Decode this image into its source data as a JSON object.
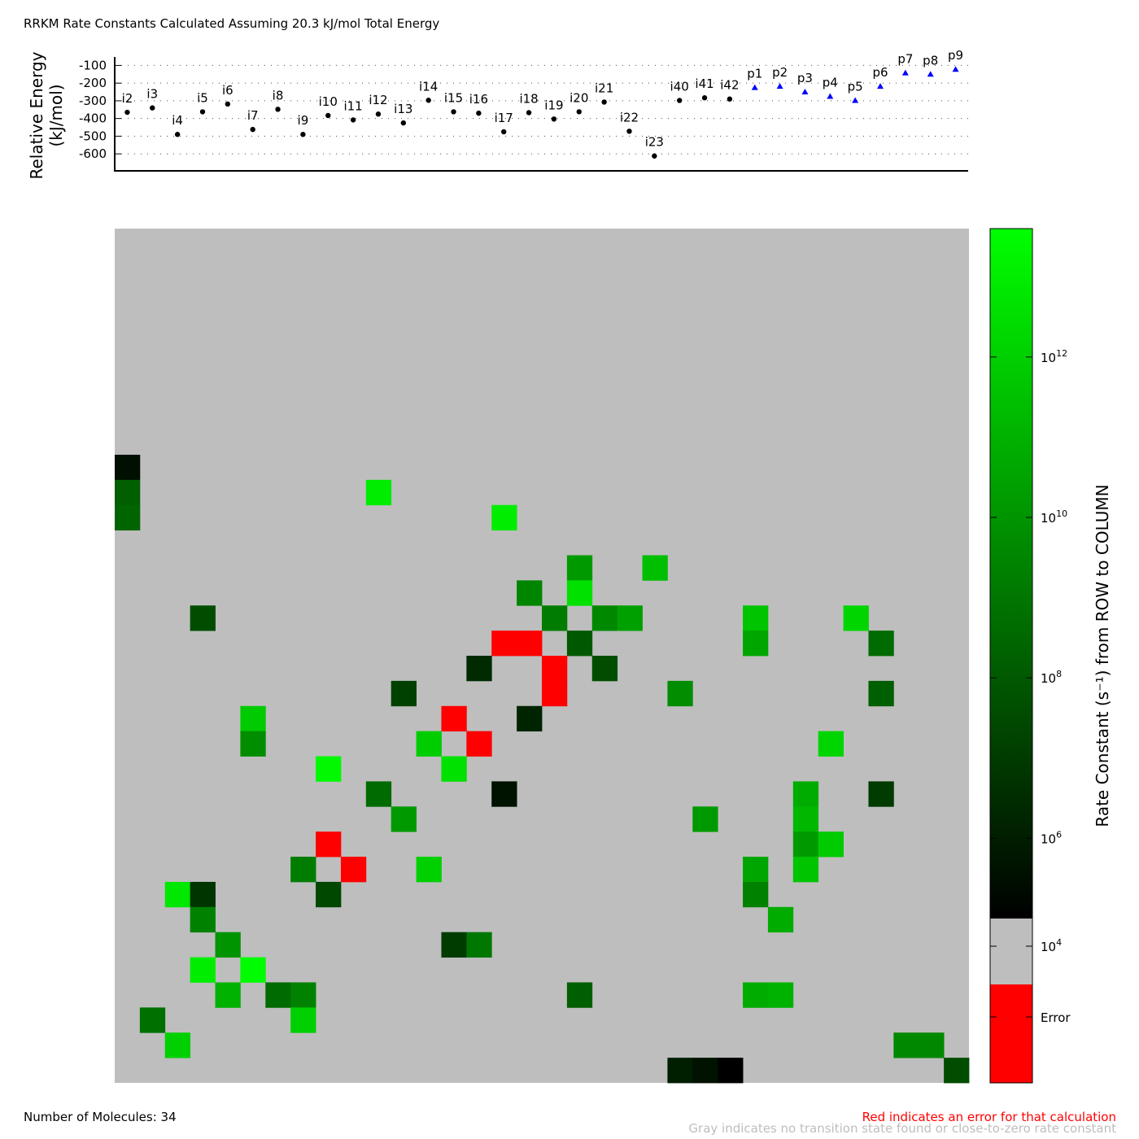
{
  "title": "RRKM Rate Constants Calculated Assuming 20.3 kJ/mol Total Energy",
  "footer": {
    "molecules": "Number of Molecules: 34",
    "red_note": "Red indicates an error for that calculation",
    "gray_note": "Gray indicates no transition state found or close-to-zero rate constant"
  },
  "colors": {
    "gray": "#bebebe",
    "error": "#ff0000",
    "intermediate_marker": "#000000",
    "product_marker": "#0000ff"
  },
  "chart_data": [
    {
      "type": "scatter",
      "ylabel_line1": "Relative Energy",
      "ylabel_line2": "(kJ/mol)",
      "ylim": [
        -650,
        -75
      ],
      "yticks": [
        -100,
        -200,
        -300,
        -400,
        -500,
        -600
      ],
      "grid": "horizontal dotted",
      "points": [
        {
          "label": "i2",
          "y": -365,
          "kind": "intermediate"
        },
        {
          "label": "i3",
          "y": -340,
          "kind": "intermediate"
        },
        {
          "label": "i4",
          "y": -490,
          "kind": "intermediate"
        },
        {
          "label": "i5",
          "y": -362,
          "kind": "intermediate"
        },
        {
          "label": "i6",
          "y": -318,
          "kind": "intermediate"
        },
        {
          "label": "i7",
          "y": -462,
          "kind": "intermediate"
        },
        {
          "label": "i8",
          "y": -348,
          "kind": "intermediate"
        },
        {
          "label": "i9",
          "y": -490,
          "kind": "intermediate"
        },
        {
          "label": "i10",
          "y": -383,
          "kind": "intermediate"
        },
        {
          "label": "i11",
          "y": -408,
          "kind": "intermediate"
        },
        {
          "label": "i12",
          "y": -375,
          "kind": "intermediate"
        },
        {
          "label": "i13",
          "y": -425,
          "kind": "intermediate"
        },
        {
          "label": "i14",
          "y": -297,
          "kind": "intermediate"
        },
        {
          "label": "i15",
          "y": -362,
          "kind": "intermediate"
        },
        {
          "label": "i16",
          "y": -370,
          "kind": "intermediate"
        },
        {
          "label": "i17",
          "y": -475,
          "kind": "intermediate"
        },
        {
          "label": "i18",
          "y": -367,
          "kind": "intermediate"
        },
        {
          "label": "i19",
          "y": -403,
          "kind": "intermediate"
        },
        {
          "label": "i20",
          "y": -362,
          "kind": "intermediate"
        },
        {
          "label": "i21",
          "y": -307,
          "kind": "intermediate"
        },
        {
          "label": "i22",
          "y": -472,
          "kind": "intermediate"
        },
        {
          "label": "i23",
          "y": -612,
          "kind": "intermediate"
        },
        {
          "label": "i40",
          "y": -298,
          "kind": "intermediate"
        },
        {
          "label": "i41",
          "y": -283,
          "kind": "intermediate"
        },
        {
          "label": "i42",
          "y": -290,
          "kind": "intermediate"
        },
        {
          "label": "p1",
          "y": -225,
          "kind": "product"
        },
        {
          "label": "p2",
          "y": -218,
          "kind": "product"
        },
        {
          "label": "p3",
          "y": -250,
          "kind": "product"
        },
        {
          "label": "p4",
          "y": -275,
          "kind": "product"
        },
        {
          "label": "p5",
          "y": -298,
          "kind": "product"
        },
        {
          "label": "p6",
          "y": -218,
          "kind": "product"
        },
        {
          "label": "p7",
          "y": -142,
          "kind": "product"
        },
        {
          "label": "p8",
          "y": -150,
          "kind": "product"
        },
        {
          "label": "p9",
          "y": -122,
          "kind": "product"
        }
      ]
    },
    {
      "type": "heatmap",
      "n": 34,
      "colorbar_label": "Rate Constant (s⁻¹) from ROW to COLUMN",
      "colorbar_scale": "log",
      "colorbar_ticks": [
        {
          "exp": 12,
          "text": "10",
          "sup": "12"
        },
        {
          "exp": 10,
          "text": "10",
          "sup": "10"
        },
        {
          "exp": 8,
          "text": "10",
          "sup": "8"
        },
        {
          "exp": 6,
          "text": "10",
          "sup": "6"
        },
        {
          "exp": 4,
          "text": "10",
          "sup": "4"
        }
      ],
      "colorbar_error_label": "Error",
      "colorbar_range_log10": [
        5.0,
        13.6
      ],
      "cells": [
        {
          "row": 9,
          "col": 0,
          "log10k": 5.5
        },
        {
          "row": 10,
          "col": 0,
          "log10k": 8.2
        },
        {
          "row": 10,
          "col": 10,
          "log10k": 13.0
        },
        {
          "row": 11,
          "col": 0,
          "log10k": 8.4
        },
        {
          "row": 11,
          "col": 15,
          "log10k": 13.0
        },
        {
          "row": 13,
          "col": 18,
          "log10k": 10.2
        },
        {
          "row": 13,
          "col": 21,
          "log10k": 11.4
        },
        {
          "row": 14,
          "col": 16,
          "log10k": 9.5
        },
        {
          "row": 14,
          "col": 18,
          "log10k": 12.6
        },
        {
          "row": 15,
          "col": 3,
          "log10k": 7.6
        },
        {
          "row": 15,
          "col": 17,
          "log10k": 9.2
        },
        {
          "row": 15,
          "col": 19,
          "log10k": 9.6
        },
        {
          "row": 15,
          "col": 20,
          "log10k": 10.4
        },
        {
          "row": 15,
          "col": 25,
          "log10k": 11.6
        },
        {
          "row": 15,
          "col": 29,
          "log10k": 12.2
        },
        {
          "row": 16,
          "col": 15,
          "error": true
        },
        {
          "row": 16,
          "col": 16,
          "error": true
        },
        {
          "row": 16,
          "col": 18,
          "log10k": 8.0
        },
        {
          "row": 16,
          "col": 25,
          "log10k": 10.6
        },
        {
          "row": 16,
          "col": 30,
          "log10k": 8.6
        },
        {
          "row": 17,
          "col": 14,
          "log10k": 6.4
        },
        {
          "row": 17,
          "col": 17,
          "error": true
        },
        {
          "row": 17,
          "col": 19,
          "log10k": 7.6
        },
        {
          "row": 18,
          "col": 11,
          "log10k": 7.2
        },
        {
          "row": 18,
          "col": 17,
          "error": true
        },
        {
          "row": 18,
          "col": 22,
          "log10k": 9.8
        },
        {
          "row": 18,
          "col": 30,
          "log10k": 8.2
        },
        {
          "row": 19,
          "col": 5,
          "log10k": 11.8
        },
        {
          "row": 19,
          "col": 13,
          "error": true
        },
        {
          "row": 19,
          "col": 16,
          "log10k": 6.2
        },
        {
          "row": 20,
          "col": 5,
          "log10k": 9.8
        },
        {
          "row": 20,
          "col": 12,
          "log10k": 11.9
        },
        {
          "row": 20,
          "col": 14,
          "error": true
        },
        {
          "row": 20,
          "col": 28,
          "log10k": 12.2
        },
        {
          "row": 21,
          "col": 8,
          "log10k": 13.4
        },
        {
          "row": 21,
          "col": 13,
          "log10k": 12.6
        },
        {
          "row": 22,
          "col": 10,
          "log10k": 8.6
        },
        {
          "row": 22,
          "col": 15,
          "log10k": 5.6
        },
        {
          "row": 22,
          "col": 27,
          "log10k": 10.8
        },
        {
          "row": 22,
          "col": 30,
          "log10k": 7.0
        },
        {
          "row": 23,
          "col": 11,
          "log10k": 10.2
        },
        {
          "row": 23,
          "col": 23,
          "log10k": 10.2
        },
        {
          "row": 23,
          "col": 27,
          "log10k": 11.2
        },
        {
          "row": 24,
          "col": 8,
          "error": true
        },
        {
          "row": 24,
          "col": 27,
          "log10k": 10.2
        },
        {
          "row": 24,
          "col": 28,
          "log10k": 11.8
        },
        {
          "row": 25,
          "col": 7,
          "log10k": 9.2
        },
        {
          "row": 25,
          "col": 9,
          "error": true
        },
        {
          "row": 25,
          "col": 12,
          "log10k": 12.0
        },
        {
          "row": 25,
          "col": 25,
          "log10k": 10.6
        },
        {
          "row": 25,
          "col": 27,
          "log10k": 11.6
        },
        {
          "row": 26,
          "col": 2,
          "log10k": 12.8
        },
        {
          "row": 26,
          "col": 3,
          "log10k": 6.8
        },
        {
          "row": 26,
          "col": 8,
          "log10k": 7.4
        },
        {
          "row": 26,
          "col": 25,
          "log10k": 9.4
        },
        {
          "row": 27,
          "col": 3,
          "log10k": 9.4
        },
        {
          "row": 27,
          "col": 26,
          "log10k": 10.8
        },
        {
          "row": 28,
          "col": 4,
          "log10k": 10.0
        },
        {
          "row": 28,
          "col": 13,
          "log10k": 7.0
        },
        {
          "row": 28,
          "col": 14,
          "log10k": 9.0
        },
        {
          "row": 29,
          "col": 3,
          "log10k": 13.0
        },
        {
          "row": 29,
          "col": 5,
          "log10k": 13.5
        },
        {
          "row": 30,
          "col": 4,
          "log10k": 11.0
        },
        {
          "row": 30,
          "col": 6,
          "log10k": 8.6
        },
        {
          "row": 30,
          "col": 7,
          "log10k": 9.4
        },
        {
          "row": 30,
          "col": 18,
          "log10k": 8.2
        },
        {
          "row": 30,
          "col": 25,
          "log10k": 10.8
        },
        {
          "row": 30,
          "col": 26,
          "log10k": 11.0
        },
        {
          "row": 31,
          "col": 1,
          "log10k": 8.8
        },
        {
          "row": 31,
          "col": 7,
          "log10k": 12.0
        },
        {
          "row": 32,
          "col": 2,
          "log10k": 12.0
        },
        {
          "row": 32,
          "col": 31,
          "log10k": 9.6
        },
        {
          "row": 32,
          "col": 32,
          "log10k": 9.6
        },
        {
          "row": 33,
          "col": 22,
          "log10k": 6.0
        },
        {
          "row": 33,
          "col": 23,
          "log10k": 5.6
        },
        {
          "row": 33,
          "col": 24,
          "log10k": 4.9
        },
        {
          "row": 33,
          "col": 33,
          "log10k": 7.6
        }
      ]
    }
  ]
}
